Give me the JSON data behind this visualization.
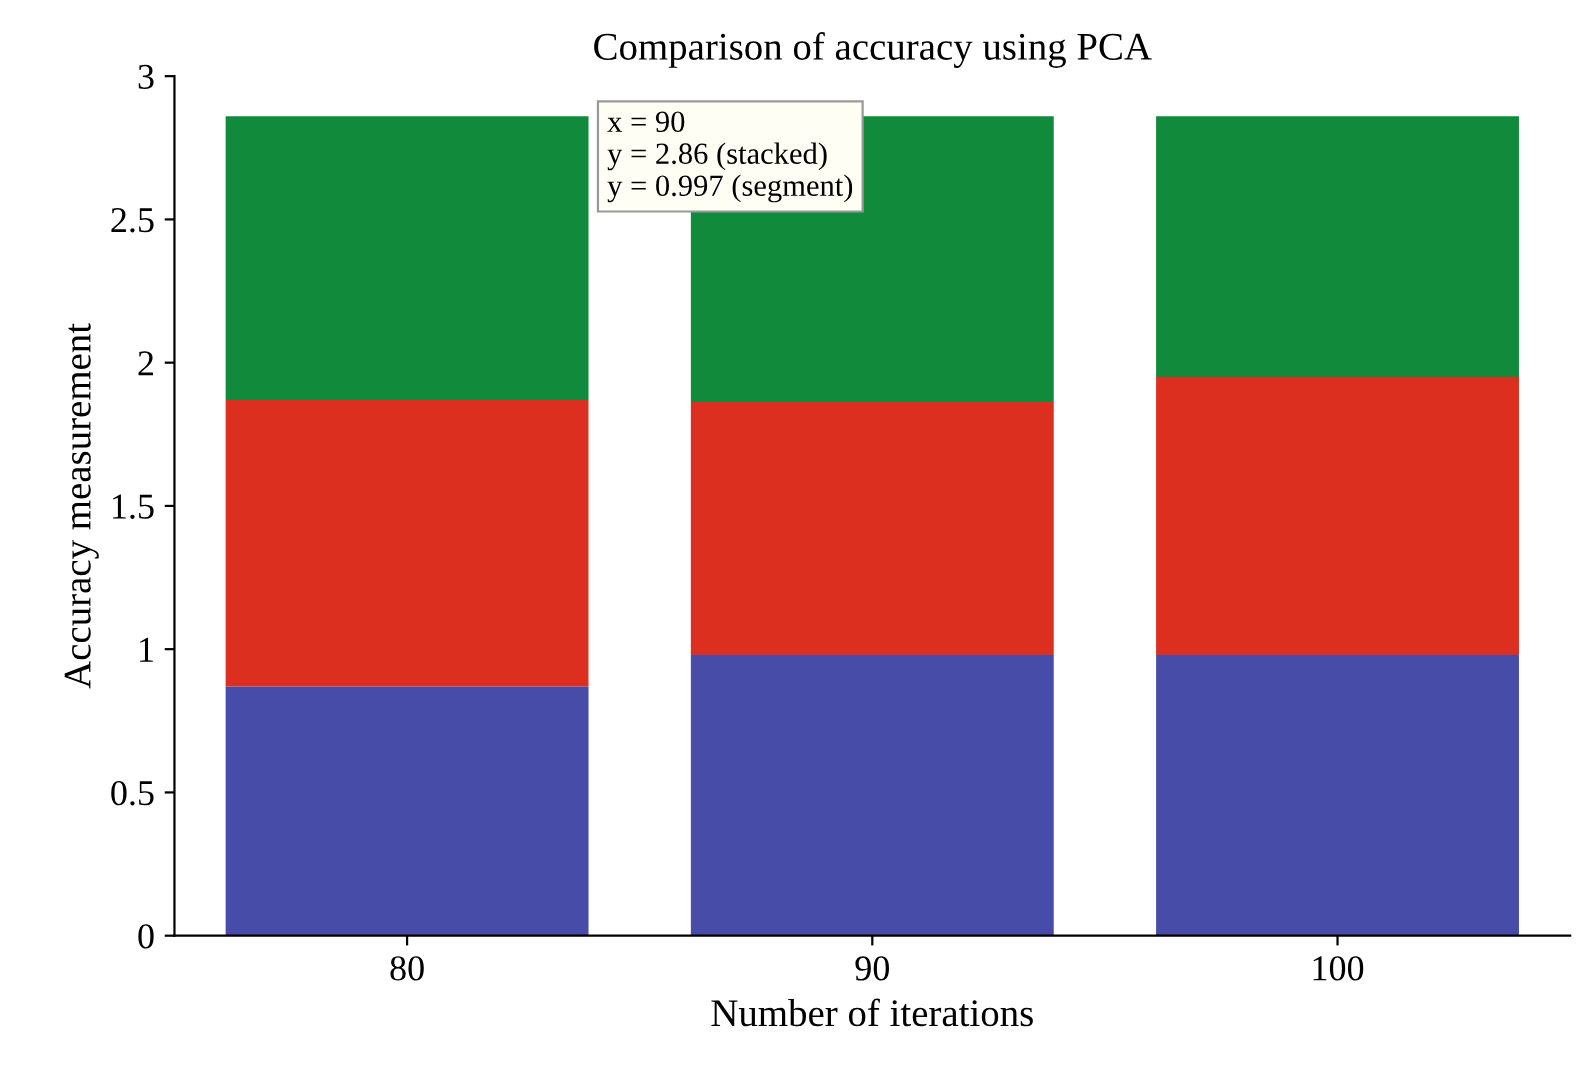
{
  "chart_data": {
    "type": "bar",
    "title": "Comparison of accuracy using PCA",
    "xlabel": "Number of iterations",
    "ylabel": "Accuracy measurement",
    "categories": [
      "80",
      "90",
      "100"
    ],
    "stacked": true,
    "series": [
      {
        "color": "#464ca8",
        "values": [
          0.87,
          0.98,
          0.98
        ]
      },
      {
        "color": "#dc2f1f",
        "values": [
          1.0,
          0.883,
          0.97
        ]
      },
      {
        "color": "#128a3b",
        "values": [
          0.99,
          0.997,
          0.91
        ]
      }
    ],
    "ylim": [
      0,
      3
    ],
    "yticks": [
      0,
      0.5,
      1,
      1.5,
      2,
      2.5,
      3
    ],
    "grid": false,
    "legend": false,
    "annotations": [
      "x = 90\ny = 2.86 (stacked)\ny = 0.997 (segment)"
    ]
  }
}
